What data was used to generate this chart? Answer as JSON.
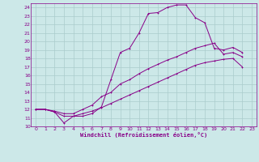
{
  "xlabel": "Windchill (Refroidissement éolien,°C)",
  "bg_color": "#cce8e8",
  "grid_color": "#aacccc",
  "line_color": "#880088",
  "xlim": [
    -0.5,
    23.5
  ],
  "ylim": [
    10,
    24.5
  ],
  "xticks": [
    0,
    1,
    2,
    3,
    4,
    5,
    6,
    7,
    8,
    9,
    10,
    11,
    12,
    13,
    14,
    15,
    16,
    17,
    18,
    19,
    20,
    21,
    22,
    23
  ],
  "yticks": [
    10,
    11,
    12,
    13,
    14,
    15,
    16,
    17,
    18,
    19,
    20,
    21,
    22,
    23,
    24
  ],
  "curve1_x": [
    0,
    1,
    2,
    3,
    4,
    5,
    6,
    7,
    8,
    9,
    10,
    11,
    12,
    13,
    14,
    15,
    16,
    17,
    18,
    19,
    20,
    21,
    22
  ],
  "curve1_y": [
    12,
    12,
    11.7,
    10.4,
    11.2,
    11.2,
    11.5,
    12.3,
    15.5,
    18.7,
    19.2,
    21.0,
    23.3,
    23.4,
    24.0,
    24.3,
    24.3,
    22.8,
    22.2,
    19.2,
    19.0,
    19.3,
    18.7
  ],
  "curve2_x": [
    0,
    1,
    2,
    3,
    4,
    5,
    6,
    7,
    8,
    9,
    10,
    11,
    12,
    13,
    14,
    15,
    16,
    17,
    18,
    19,
    20,
    21,
    22
  ],
  "curve2_y": [
    12,
    12,
    11.8,
    11.5,
    11.5,
    12.0,
    12.5,
    13.5,
    14.0,
    15.0,
    15.5,
    16.2,
    16.8,
    17.3,
    17.8,
    18.2,
    18.7,
    19.2,
    19.5,
    19.8,
    18.5,
    18.7,
    18.2
  ],
  "curve3_x": [
    0,
    1,
    2,
    3,
    4,
    5,
    6,
    7,
    8,
    9,
    10,
    11,
    12,
    13,
    14,
    15,
    16,
    17,
    18,
    19,
    20,
    21,
    22
  ],
  "curve3_y": [
    12,
    12,
    11.7,
    11.2,
    11.2,
    11.5,
    11.8,
    12.2,
    12.7,
    13.2,
    13.7,
    14.2,
    14.7,
    15.2,
    15.7,
    16.2,
    16.7,
    17.2,
    17.5,
    17.7,
    17.9,
    18.0,
    17.0
  ]
}
